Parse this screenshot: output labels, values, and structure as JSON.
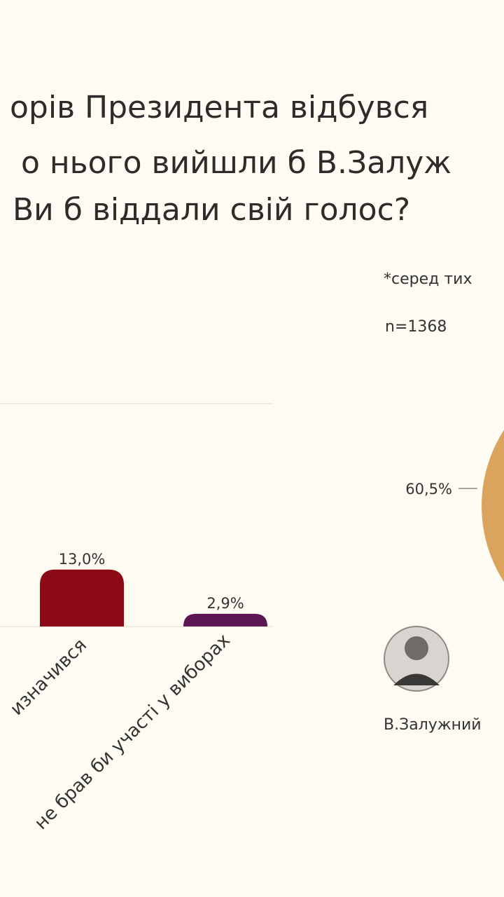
{
  "header": {
    "lines": [
      "орів Президента відбувся",
      "о нього вийшли б В.Залуж",
      "Ви б віддали свій голос?"
    ],
    "note": "*серед тих",
    "sample": "n=1368"
  },
  "chart_data": [
    {
      "type": "bar",
      "categories": [
        "изначився",
        "не брав би участі у виборах"
      ],
      "values": [
        13.0,
        2.9
      ],
      "value_labels": [
        "13,0%",
        "2,9%"
      ],
      "colors": [
        "#8c0a16",
        "#5c1653"
      ]
    },
    {
      "type": "pie",
      "categories": [
        "В.Залужний"
      ],
      "values": [
        60.5
      ],
      "value_labels": [
        "60,5%"
      ],
      "colors": [
        "#dba45e"
      ]
    }
  ]
}
